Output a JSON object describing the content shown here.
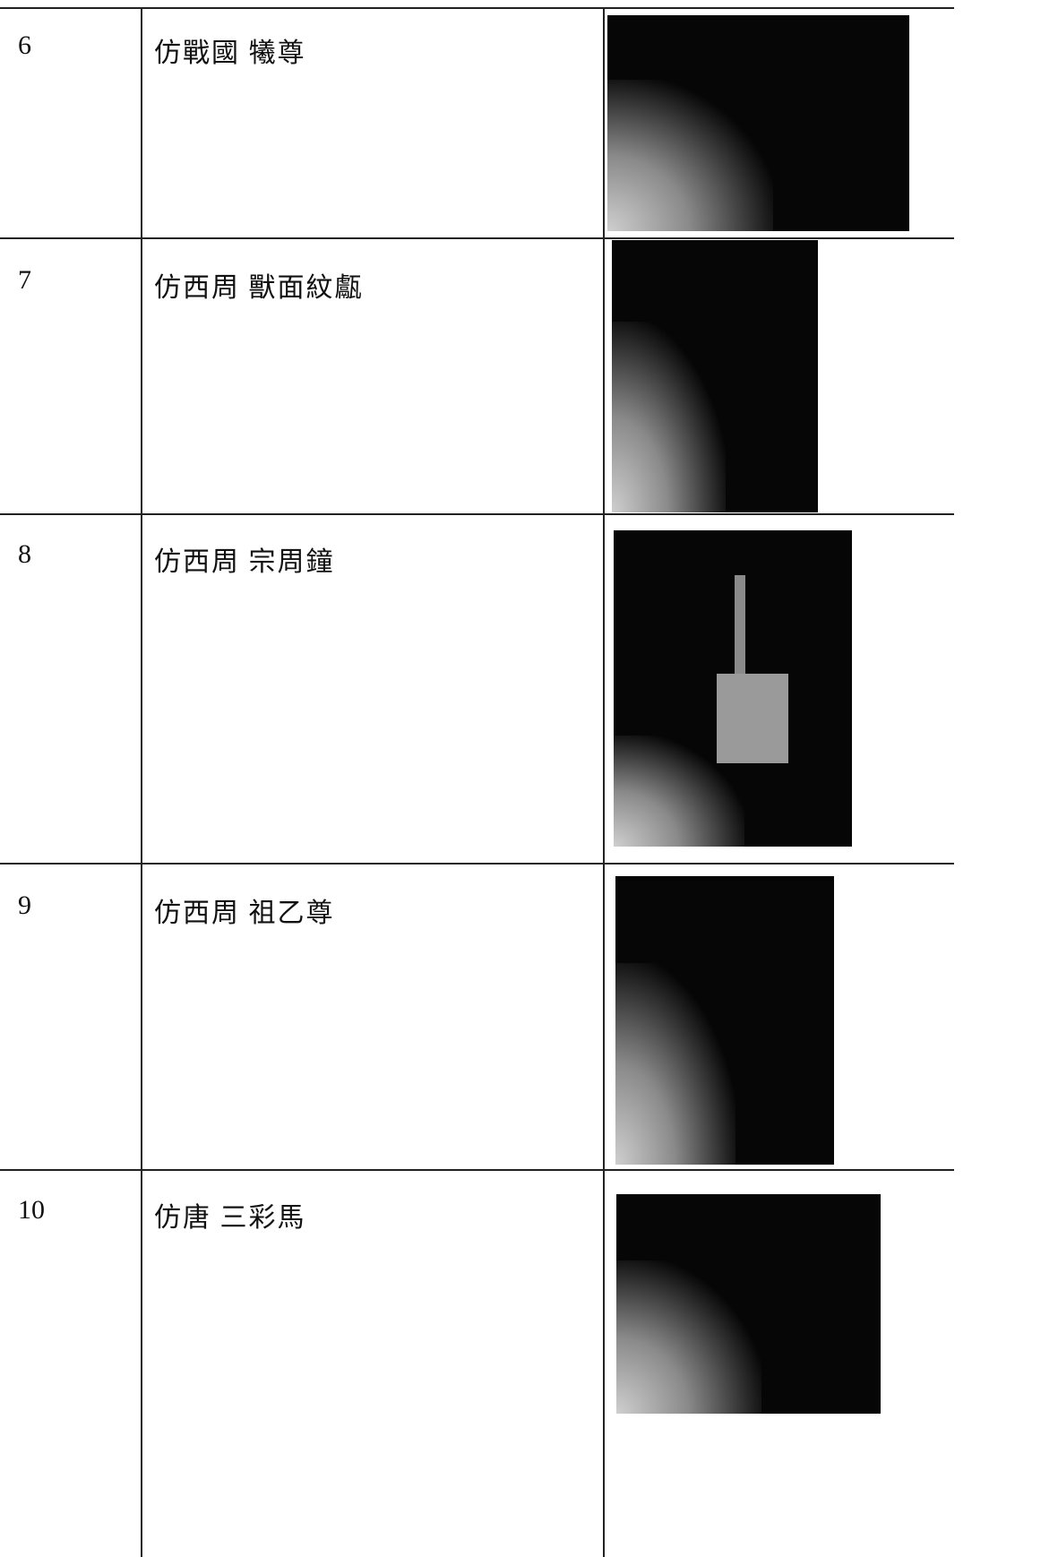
{
  "table": {
    "rows": [
      [
        "6",
        "仿戰國 犧尊"
      ],
      [
        "7",
        "仿西周 獸面紋甗"
      ],
      [
        "8",
        "仿西周 宗周鐘"
      ],
      [
        "9",
        "仿西周 祖乙尊"
      ],
      [
        "10",
        "仿唐 三彩馬"
      ]
    ]
  }
}
